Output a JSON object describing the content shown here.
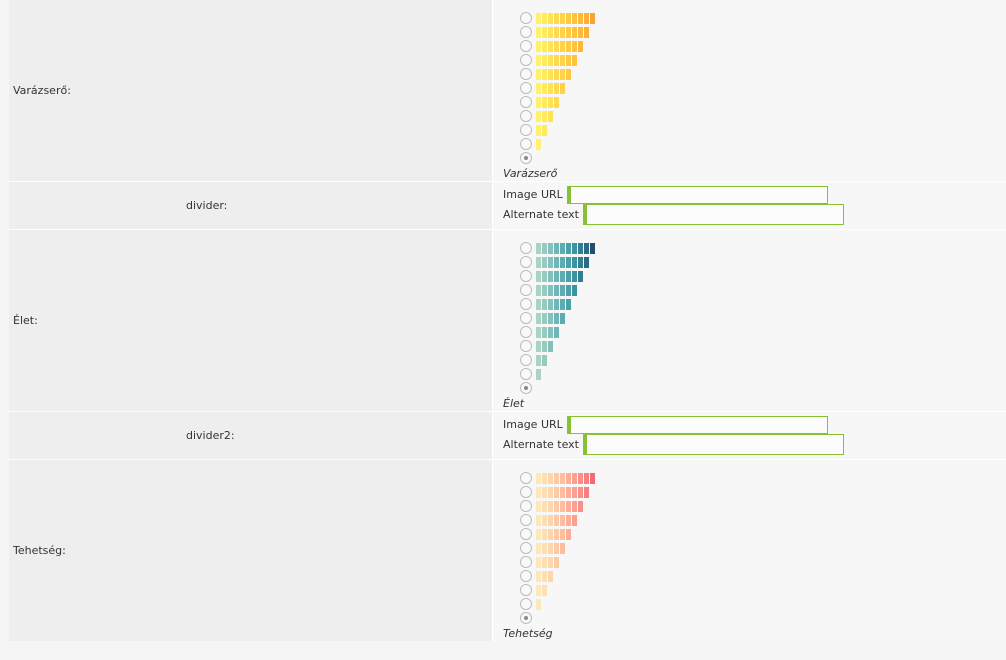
{
  "rows": [
    {
      "type": "rating",
      "name": "varazsero",
      "label": "Varázserő:",
      "caption": "Varázserő",
      "colors": [
        "#fff070",
        "#ffeb5c",
        "#ffe356",
        "#ffda4e",
        "#ffd247",
        "#ffca42",
        "#ffc13e",
        "#ffb93a",
        "#ffb035",
        "#f6a433"
      ],
      "selected_level": 0
    },
    {
      "type": "divider",
      "name": "divider",
      "label": "divider:",
      "image_url_label": "Image URL",
      "image_url_value": "",
      "alt_text_label": "Alternate text",
      "alt_text_value": ""
    },
    {
      "type": "rating",
      "name": "elet",
      "label": "Élet:",
      "caption": "Élet",
      "colors": [
        "#a9d3c7",
        "#96cbc0",
        "#83c2bc",
        "#6fb7b6",
        "#5cacb0",
        "#4aa1a9",
        "#3b94a1",
        "#327f94",
        "#2b6a85",
        "#234e70"
      ],
      "selected_level": 0
    },
    {
      "type": "divider",
      "name": "divider2",
      "label": "divider2:",
      "image_url_label": "Image URL",
      "image_url_value": "",
      "alt_text_label": "Alternate text",
      "alt_text_value": ""
    },
    {
      "type": "rating",
      "name": "tehetseg",
      "label": "Tehetség:",
      "caption": "Tehetség",
      "colors": [
        "#fde8b9",
        "#fde0b2",
        "#fdd6ad",
        "#fdcaa6",
        "#fdbd9f",
        "#fcae98",
        "#fb9f91",
        "#f98f89",
        "#f77f81",
        "#f36a76"
      ],
      "selected_level": 0
    }
  ]
}
